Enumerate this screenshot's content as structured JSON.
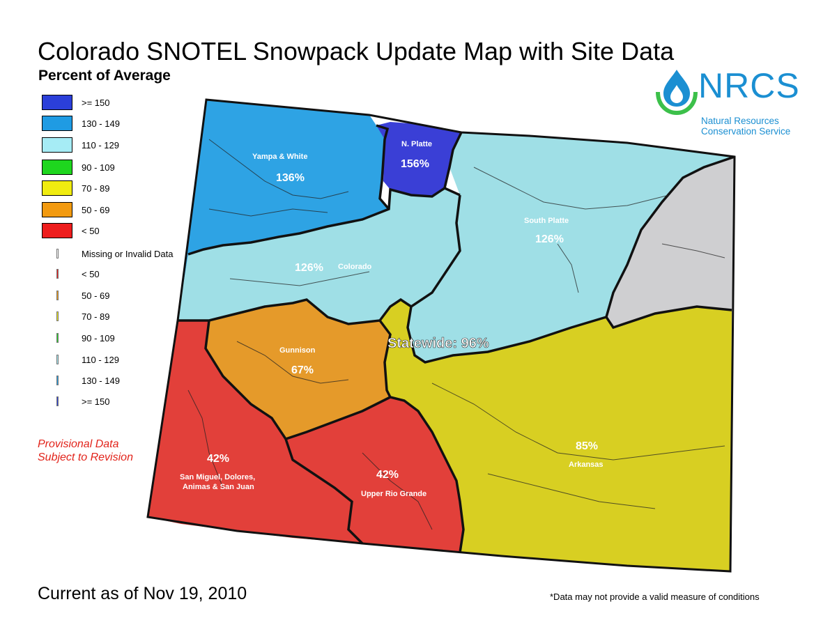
{
  "title": "Colorado SNOTEL Snowpack Update Map with Site Data",
  "subtitle": "Percent of Average",
  "legend": {
    "basin_classes": [
      {
        "label": ">= 150",
        "color": "#2b3fd9"
      },
      {
        "label": "130 - 149",
        "color": "#1f9be3"
      },
      {
        "label": "110 - 129",
        "color": "#a6ecf5"
      },
      {
        "label": "90 - 109",
        "color": "#1ed61e"
      },
      {
        "label": "70 - 89",
        "color": "#f0ec10"
      },
      {
        "label": "50 - 69",
        "color": "#f29a10"
      },
      {
        "label": "< 50",
        "color": "#ee1d1d"
      }
    ],
    "site_classes": [
      {
        "label": "Missing or Invalid Data",
        "color": "#ffffff"
      },
      {
        "label": "< 50",
        "color": "#ee1d1d"
      },
      {
        "label": "50 - 69",
        "color": "#f29a10"
      },
      {
        "label": "70 - 89",
        "color": "#f0ec10"
      },
      {
        "label": "90 - 109",
        "color": "#1ed61e"
      },
      {
        "label": "110 - 129",
        "color": "#a6ecf5"
      },
      {
        "label": "130 - 149",
        "color": "#1f9be3"
      },
      {
        "label": ">= 150",
        "color": "#2b3fd9"
      }
    ]
  },
  "provisional": {
    "line1": "Provisional Data",
    "line2": "Subject to Revision"
  },
  "logo": {
    "name": "NRCS",
    "agency_line1": "Natural Resources",
    "agency_line2": "Conservation Service"
  },
  "basins": {
    "yampa": {
      "name": "Yampa & White",
      "percent": "136%",
      "color": "#2ea3e4"
    },
    "north_platte": {
      "name": "N. Platte",
      "percent": "156%",
      "color": "#3a3fd6"
    },
    "south_platte": {
      "name": "South Platte",
      "percent": "126%",
      "color": "#9fdfe6"
    },
    "colorado": {
      "name": "Colorado",
      "percent": "126%",
      "color": "#9fdfe6"
    },
    "gunnison": {
      "name": "Gunnison",
      "percent": "67%",
      "color": "#e59a2a"
    },
    "san_miguel": {
      "name_line1": "San Miguel, Dolores,",
      "name_line2": "Animas & San Juan",
      "percent": "42%",
      "color": "#e2403a"
    },
    "upper_rio_grande": {
      "name": "Upper Rio Grande",
      "percent": "42%",
      "color": "#e2403a"
    },
    "arkansas": {
      "name": "Arkansas",
      "percent": "85%",
      "color": "#d8cf22"
    },
    "eastern_plains": {
      "color": "#cfcfd1"
    }
  },
  "statewide": "Statewide: 96%",
  "current": "Current as of Nov 19, 2010",
  "footnote": "*Data may not provide a valid measure of conditions"
}
